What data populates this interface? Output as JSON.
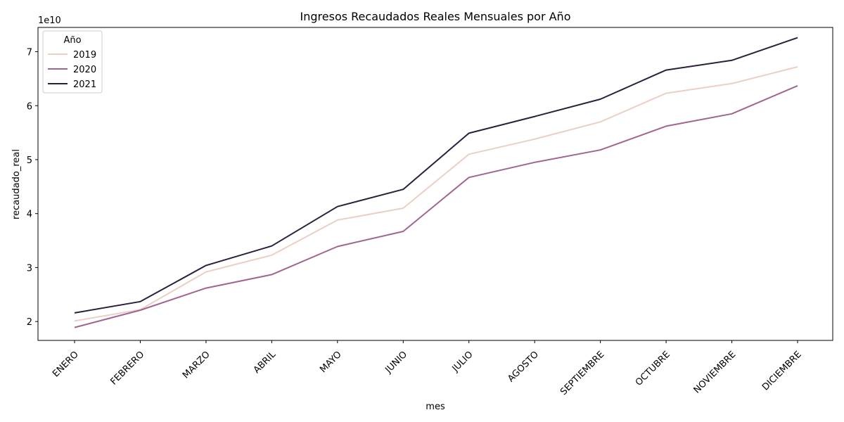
{
  "chart_data": {
    "type": "line",
    "title": "Ingresos Recaudados Reales Mensuales por Año",
    "xlabel": "mes",
    "ylabel": "recaudado_real",
    "y_offset_label": "1e10",
    "categories": [
      "ENERO",
      "FEBRERO",
      "MARZO",
      "ABRIL",
      "MAYO",
      "JUNIO",
      "JULIO",
      "AGOSTO",
      "SEPTIEMBRE",
      "OCTUBRE",
      "NOVIEMBRE",
      "DICIEMBRE"
    ],
    "yticks": [
      2,
      3,
      4,
      5,
      6,
      7
    ],
    "ylim": [
      1.65,
      7.45
    ],
    "grid": false,
    "legend": {
      "title": "Año",
      "position": "top-left"
    },
    "series": [
      {
        "name": "2019",
        "color": "#ebcfc5",
        "values": [
          2.01,
          2.22,
          2.92,
          3.23,
          3.88,
          4.1,
          5.1,
          5.38,
          5.7,
          6.23,
          6.41,
          6.72
        ]
      },
      {
        "name": "2020",
        "color": "#a1648f",
        "values": [
          1.89,
          2.21,
          2.62,
          2.87,
          3.39,
          3.67,
          4.67,
          4.95,
          5.18,
          5.62,
          5.85,
          6.37
        ]
      },
      {
        "name": "2021",
        "color": "#2c1e3d",
        "values": [
          2.16,
          2.37,
          3.04,
          3.4,
          4.13,
          4.45,
          5.49,
          5.8,
          6.12,
          6.66,
          6.84,
          7.26
        ]
      }
    ]
  }
}
